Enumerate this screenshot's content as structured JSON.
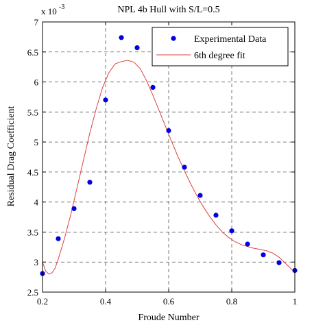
{
  "chart_data": {
    "type": "scatter",
    "title": "NPL 4b Hull with S/L=0.5",
    "xlabel": "Froude Number",
    "ylabel": "Residual Drag Coefficient",
    "y_exponent_base": "x 10",
    "y_exponent_power": "-3",
    "xlim": [
      0.2,
      1.0
    ],
    "ylim": [
      2.5,
      7.0
    ],
    "x_ticks": [
      "0.2",
      "0.4",
      "0.6",
      "0.8",
      "1"
    ],
    "x_tick_values": [
      0.2,
      0.4,
      0.6,
      0.8,
      1.0
    ],
    "y_ticks": [
      "2.5",
      "3",
      "3.5",
      "4",
      "4.5",
      "5",
      "5.5",
      "6",
      "6.5",
      "7"
    ],
    "y_tick_values": [
      2.5,
      3.0,
      3.5,
      4.0,
      4.5,
      5.0,
      5.5,
      6.0,
      6.5,
      7.0
    ],
    "grid": true,
    "legend_position": "top-right",
    "series": [
      {
        "name": "Experimental Data",
        "kind": "markers",
        "color": "#0000e0",
        "x": [
          0.2,
          0.25,
          0.3,
          0.35,
          0.4,
          0.45,
          0.5,
          0.55,
          0.6,
          0.65,
          0.7,
          0.75,
          0.8,
          0.85,
          0.9,
          0.95,
          1.0
        ],
        "y": [
          2.81,
          3.39,
          3.89,
          4.33,
          5.7,
          6.74,
          6.57,
          5.91,
          5.19,
          4.58,
          4.11,
          3.78,
          3.52,
          3.3,
          3.12,
          2.99,
          2.86
        ]
      },
      {
        "name": "6th degree fit",
        "kind": "line",
        "color": "#e04040",
        "x": [
          0.2,
          0.21,
          0.22,
          0.23,
          0.24,
          0.25,
          0.27,
          0.29,
          0.31,
          0.33,
          0.35,
          0.37,
          0.39,
          0.41,
          0.43,
          0.45,
          0.47,
          0.49,
          0.51,
          0.53,
          0.55,
          0.57,
          0.59,
          0.61,
          0.63,
          0.65,
          0.67,
          0.69,
          0.71,
          0.73,
          0.75,
          0.77,
          0.79,
          0.81,
          0.83,
          0.85,
          0.87,
          0.89,
          0.91,
          0.93,
          0.95,
          0.97,
          0.99,
          1.0
        ],
        "y": [
          3.0,
          2.85,
          2.8,
          2.82,
          2.9,
          3.05,
          3.4,
          3.8,
          4.25,
          4.7,
          5.15,
          5.55,
          5.9,
          6.15,
          6.3,
          6.34,
          6.36,
          6.33,
          6.22,
          6.02,
          5.78,
          5.52,
          5.26,
          5.0,
          4.75,
          4.52,
          4.3,
          4.1,
          3.92,
          3.76,
          3.62,
          3.5,
          3.41,
          3.34,
          3.29,
          3.26,
          3.23,
          3.21,
          3.19,
          3.15,
          3.08,
          2.98,
          2.88,
          2.83
        ]
      }
    ]
  }
}
